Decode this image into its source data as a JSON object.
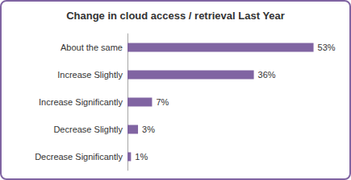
{
  "chart_data": {
    "type": "bar",
    "orientation": "horizontal",
    "title": "Change in cloud access / retrieval Last Year",
    "categories": [
      "About the same",
      "Increase Slightly",
      "Increase Significantly",
      "Decrease Slightly",
      "Decrease Significantly"
    ],
    "values": [
      53,
      36,
      7,
      3,
      1
    ],
    "value_labels": [
      "53%",
      "36%",
      "7%",
      "3%",
      "1%"
    ],
    "color": "#8064a2",
    "xlim": [
      0,
      60
    ],
    "data_labels": true,
    "tick_labels": "y",
    "grid": false
  }
}
